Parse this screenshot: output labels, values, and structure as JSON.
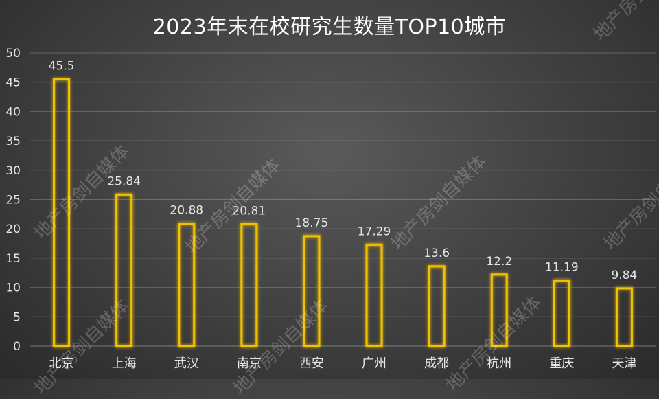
{
  "chart_data": {
    "type": "bar",
    "title": "2023年末在校研究生数量TOP10城市",
    "categories": [
      "北京",
      "上海",
      "武汉",
      "南京",
      "西安",
      "广州",
      "成都",
      "杭州",
      "重庆",
      "天津"
    ],
    "values": [
      45.5,
      25.84,
      20.88,
      20.81,
      18.75,
      17.29,
      13.6,
      12.2,
      11.19,
      9.84
    ],
    "value_labels": [
      "45.5",
      "25.84",
      "20.88",
      "20.81",
      "18.75",
      "17.29",
      "13.6",
      "12.2",
      "11.19",
      "9.84"
    ],
    "ylim": [
      0,
      50
    ],
    "yticks": [
      0,
      5,
      10,
      15,
      20,
      25,
      30,
      35,
      40,
      45,
      50
    ],
    "grid": true,
    "colors": {
      "bar_border": "#f2c200",
      "bar_glow": "#ffd000",
      "background": "#4a4a4a",
      "text": "#e6e6e6"
    }
  },
  "watermark": {
    "text": "地产房剑自媒体"
  }
}
